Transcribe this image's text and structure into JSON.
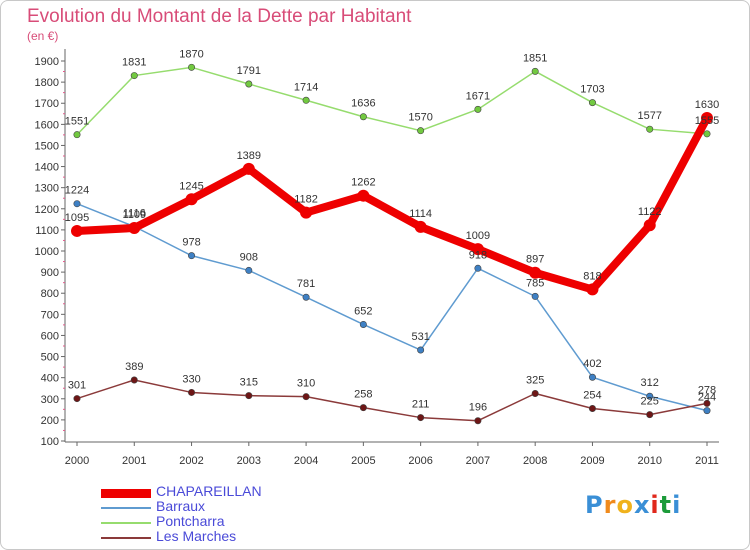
{
  "title": "Evolution du Montant de la Dette par Habitant",
  "unit_label": "(en €)",
  "logo": {
    "letters": [
      "P",
      "r",
      "o",
      "x",
      "i",
      "t",
      "i"
    ],
    "colors": [
      "#3a8fd6",
      "#f08a1c",
      "#f0b21c",
      "#3a8fd6",
      "#e0281c",
      "#1c9b3a",
      "#3a8fd6"
    ]
  },
  "chart_data": {
    "type": "line",
    "title": "Evolution du Montant de la Dette par Habitant",
    "ylabel": "(en €)",
    "xlabel": "",
    "x": [
      "2000",
      "2001",
      "2002",
      "2003",
      "2004",
      "2005",
      "2006",
      "2007",
      "2008",
      "2009",
      "2010",
      "2011"
    ],
    "ylim": [
      100,
      1900
    ],
    "yticks": [
      100,
      200,
      300,
      400,
      500,
      600,
      700,
      800,
      900,
      1000,
      1100,
      1200,
      1300,
      1400,
      1500,
      1600,
      1700,
      1800,
      1900
    ],
    "grid": false,
    "legend_position": "bottom-left",
    "series": [
      {
        "name": "CHAPAREILLAN",
        "color": "#ee0000",
        "marker": "#ee0000",
        "emphasis": true,
        "values": [
          1095,
          1109,
          1245,
          1389,
          1182,
          1262,
          1114,
          1009,
          897,
          818,
          1122,
          1630
        ]
      },
      {
        "name": "Barraux",
        "color": "#5f9bd0",
        "marker": "#3e80c4",
        "values": [
          1224,
          1116,
          978,
          908,
          781,
          652,
          531,
          918,
          785,
          402,
          312,
          244
        ]
      },
      {
        "name": "Pontcharra",
        "color": "#96dc6e",
        "marker": "#72c940",
        "values": [
          1551,
          1831,
          1870,
          1791,
          1714,
          1636,
          1570,
          1671,
          1851,
          1703,
          1577,
          1555
        ]
      },
      {
        "name": "Les Marches",
        "color": "#8b3a3a",
        "marker": "#6e1616",
        "values": [
          301,
          389,
          330,
          315,
          310,
          258,
          211,
          196,
          325,
          254,
          225,
          278
        ]
      }
    ]
  }
}
